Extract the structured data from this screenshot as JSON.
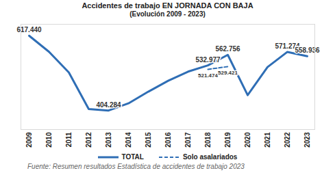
{
  "chart_data": {
    "type": "line",
    "title": "Accidentes de trabajo EN JORNADA CON BAJA",
    "subtitle": "(Evolución 2009 - 2023)",
    "caption": "Fuente: Resumen resultados Estadística de accidentes de trabajo 2023",
    "categories": [
      "2009",
      "2010",
      "2011",
      "2012",
      "2013",
      "2014",
      "2015",
      "2016",
      "2017",
      "2018",
      "2019",
      "2020",
      "2021",
      "2022",
      "2023"
    ],
    "series": [
      {
        "name": "TOTAL",
        "color": "#2f6eb5",
        "line_style": "solid",
        "values": [
          617440,
          571600,
          512600,
          408500,
          404284,
          424600,
          458000,
          489000,
          515000,
          532977,
          562756,
          448000,
          528000,
          571274,
          558936
        ],
        "value_labels": [
          "617.440",
          null,
          null,
          null,
          "404.284",
          null,
          null,
          null,
          null,
          "532.977",
          "562.756",
          null,
          null,
          "571.274",
          "558.936"
        ]
      },
      {
        "name": "Solo asalariados",
        "color": "#2f6eb5",
        "line_style": "dashed",
        "values": [
          null,
          null,
          null,
          null,
          null,
          null,
          null,
          null,
          null,
          521474,
          529421,
          null,
          null,
          null,
          null
        ],
        "value_labels": [
          null,
          null,
          null,
          null,
          null,
          null,
          null,
          null,
          null,
          "521.474",
          "529.421",
          null,
          null,
          null,
          null
        ]
      }
    ],
    "ylim": [
      350000,
      650000
    ],
    "data_labels": true,
    "tick_labels": "x",
    "grid": false,
    "legend": "bottom"
  }
}
